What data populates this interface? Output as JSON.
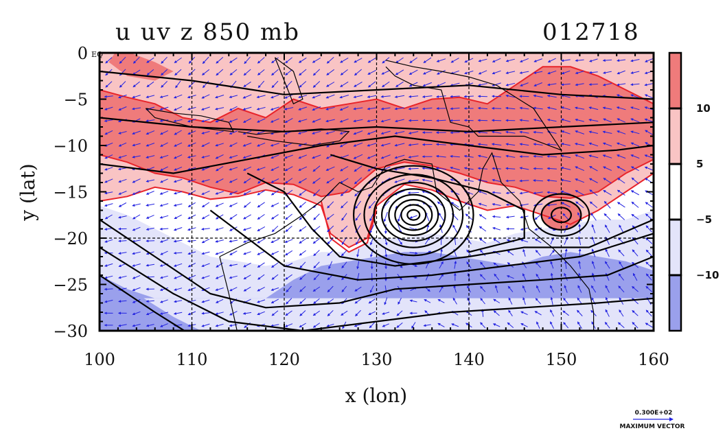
{
  "chart_data": {
    "type": "heatmap",
    "title": "u uv z 850 mb",
    "subtitle": "012718",
    "xlabel": "x (lon)",
    "ylabel": "y (lat)",
    "xlim": [
      100,
      160
    ],
    "ylim": [
      -30,
      0
    ],
    "x_ticks": [
      "100",
      "110",
      "120",
      "130",
      "140",
      "150",
      "160"
    ],
    "y_ticks": [
      "0",
      "−5",
      "−10",
      "−15",
      "−20",
      "−25",
      "−30"
    ],
    "y_zero_suffix": "EQ",
    "grid": "dashed at 10° lon, 5° lat",
    "colorbar": {
      "levels": [
        "10",
        "5",
        "−5",
        "−10"
      ],
      "colors": [
        "#ef7b7b",
        "#f9c4c4",
        "#ffffff",
        "#e3e4fa",
        "#9aa0ec"
      ]
    },
    "features": [
      {
        "name": "low center",
        "lon": 134,
        "lat": -17.5
      },
      {
        "name": "low center",
        "lon": 150,
        "lat": -17.5
      }
    ],
    "vector_key": {
      "value": "0.300E+02",
      "label": "MAXIMUM VECTOR"
    }
  },
  "colors": {
    "strong_pos": "#ef7b7b",
    "weak_pos": "#f9c4c4",
    "weak_neg": "#e3e4fa",
    "strong_neg": "#9aa0ec",
    "contour_pos": "#e8242a",
    "contour_black": "#000000",
    "vector": "#2323e0"
  }
}
